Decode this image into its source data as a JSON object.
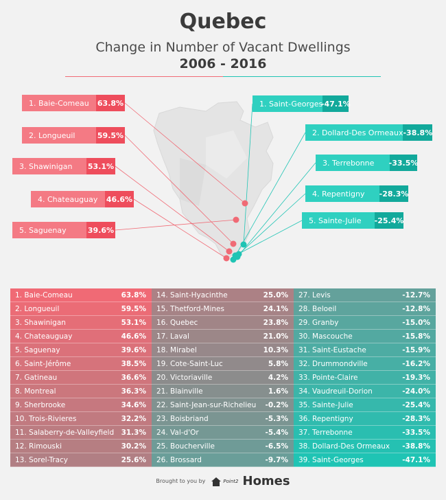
{
  "title": "Quebec",
  "subtitle": "Change in Number of Vacant Dwellings",
  "years": "2006 - 2016",
  "footer": {
    "prefix": "Brought to you by",
    "brand_small": "Point2",
    "brand": "Homes"
  },
  "colors": {
    "increase": "#f06a75",
    "decrease": "#1fc4b4",
    "neutral": "#8c8c8c",
    "text_dark": "#3b3b3b"
  },
  "chart_data": {
    "type": "table",
    "title": "Quebec",
    "subtitle": "Change in Number of Vacant Dwellings 2006 - 2016",
    "top_increases": [
      {
        "rank": "1. Baie-Comeau",
        "value": "63.8%"
      },
      {
        "rank": "2. Longueuil",
        "value": "59.5%"
      },
      {
        "rank": "3. Shawinigan",
        "value": "53.1%"
      },
      {
        "rank": "4. Chateauguay",
        "value": "46.6%"
      },
      {
        "rank": "5. Saguenay",
        "value": "39.6%"
      }
    ],
    "top_decreases": [
      {
        "rank": "1. Saint-Georges",
        "value": "-47.1%"
      },
      {
        "rank": "2. Dollard-Des Ormeaux",
        "value": "-38.8%"
      },
      {
        "rank": "3. Terrebonne",
        "value": "-33.5%"
      },
      {
        "rank": "4. Repentigny",
        "value": "-28.3%"
      },
      {
        "rank": "5. Sainte-Julie",
        "value": "-25.4%"
      }
    ],
    "rows": [
      {
        "name": "1. Baie-Comeau",
        "value": "63.8%"
      },
      {
        "name": "2. Longueuil",
        "value": "59.5%"
      },
      {
        "name": "3. Shawinigan",
        "value": "53.1%"
      },
      {
        "name": "4. Chateauguay",
        "value": "46.6%"
      },
      {
        "name": "5. Saguenay",
        "value": "39.6%"
      },
      {
        "name": "6. Saint-Jérôme",
        "value": "38.5%"
      },
      {
        "name": "7. Gatineau",
        "value": "36.6%"
      },
      {
        "name": "8. Montreal",
        "value": "36.3%"
      },
      {
        "name": "9. Sherbrooke",
        "value": "34.6%"
      },
      {
        "name": "10. Trois-Rivieres",
        "value": "32.2%"
      },
      {
        "name": "11. Salaberry-de-Valleyfield",
        "value": "31.3%"
      },
      {
        "name": "12. Rimouski",
        "value": "30.2%"
      },
      {
        "name": "13. Sorel-Tracy",
        "value": "25.6%"
      },
      {
        "name": "14. Saint-Hyacinthe",
        "value": "25.0%"
      },
      {
        "name": "15. Thetford-Mines",
        "value": "24.1%"
      },
      {
        "name": "16. Quebec",
        "value": "23.8%"
      },
      {
        "name": "17. Laval",
        "value": "21.0%"
      },
      {
        "name": "18. Mirabel",
        "value": "10.3%"
      },
      {
        "name": "19. Cote-Saint-Luc",
        "value": "5.8%"
      },
      {
        "name": "20. Victoriaville",
        "value": "4.2%"
      },
      {
        "name": "21. Blainville",
        "value": "1.6%"
      },
      {
        "name": "22. Saint-Jean-sur-Richelieu",
        "value": "-0.2%"
      },
      {
        "name": "23. Boisbriand",
        "value": "-5.3%"
      },
      {
        "name": "24. Val-d'Or",
        "value": "-5.4%"
      },
      {
        "name": "25. Boucherville",
        "value": "-6.5%"
      },
      {
        "name": "26. Brossard",
        "value": "-9.7%"
      },
      {
        "name": "27. Levis",
        "value": "-12.7%"
      },
      {
        "name": "28. Beloeil",
        "value": "-12.8%"
      },
      {
        "name": "29. Granby",
        "value": "-15.0%"
      },
      {
        "name": "30. Mascouche",
        "value": "-15.8%"
      },
      {
        "name": "31. Saint-Eustache",
        "value": "-15.9%"
      },
      {
        "name": "32. Drummondville",
        "value": "-16.2%"
      },
      {
        "name": "33. Pointe-Claire",
        "value": "-19.3%"
      },
      {
        "name": "34. Vaudreuil-Dorion",
        "value": "-24.0%"
      },
      {
        "name": "35. Sainte-Julie",
        "value": "-25.4%"
      },
      {
        "name": "36. Repentigny",
        "value": "-28.3%"
      },
      {
        "name": "37. Terrebonne",
        "value": "-33.5%"
      },
      {
        "name": "38. Dollard-Des Ormeaux",
        "value": "-38.8%"
      },
      {
        "name": "39. Saint-Georges",
        "value": "-47.1%"
      }
    ]
  }
}
